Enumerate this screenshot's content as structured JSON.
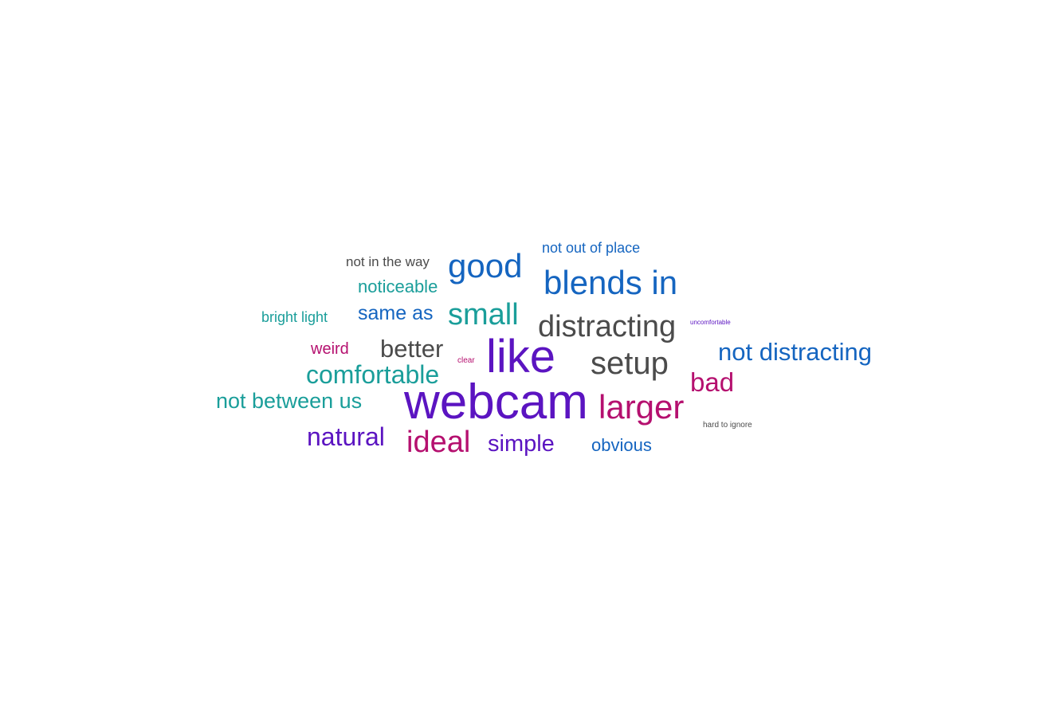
{
  "word_cloud": {
    "words": {
      "webcam": "webcam",
      "like": "like",
      "good": "good",
      "blends_in": "blends in",
      "distracting": "distracting",
      "setup": "setup",
      "larger": "larger",
      "small": "small",
      "ideal": "ideal",
      "comfortable": "comfortable",
      "better": "better",
      "natural": "natural",
      "simple": "simple",
      "bad": "bad",
      "not_distracting": "not distracting",
      "not_between_us": "not between us",
      "same_as": "same as",
      "noticeable": "noticeable",
      "obvious": "obvious",
      "not_out_of_place": "not out of place",
      "not_in_the_way": "not in the way",
      "bright_light": "bright light",
      "weird": "weird",
      "clear": "clear",
      "uncomfortable": "uncomfortable",
      "hard_to_ignore": "hard to ignore"
    },
    "colors": {
      "purple": "#5b14c1",
      "blue": "#1565c0",
      "teal": "#1a9e9a",
      "gray": "#4b4b4b",
      "pink": "#b5106f"
    }
  }
}
